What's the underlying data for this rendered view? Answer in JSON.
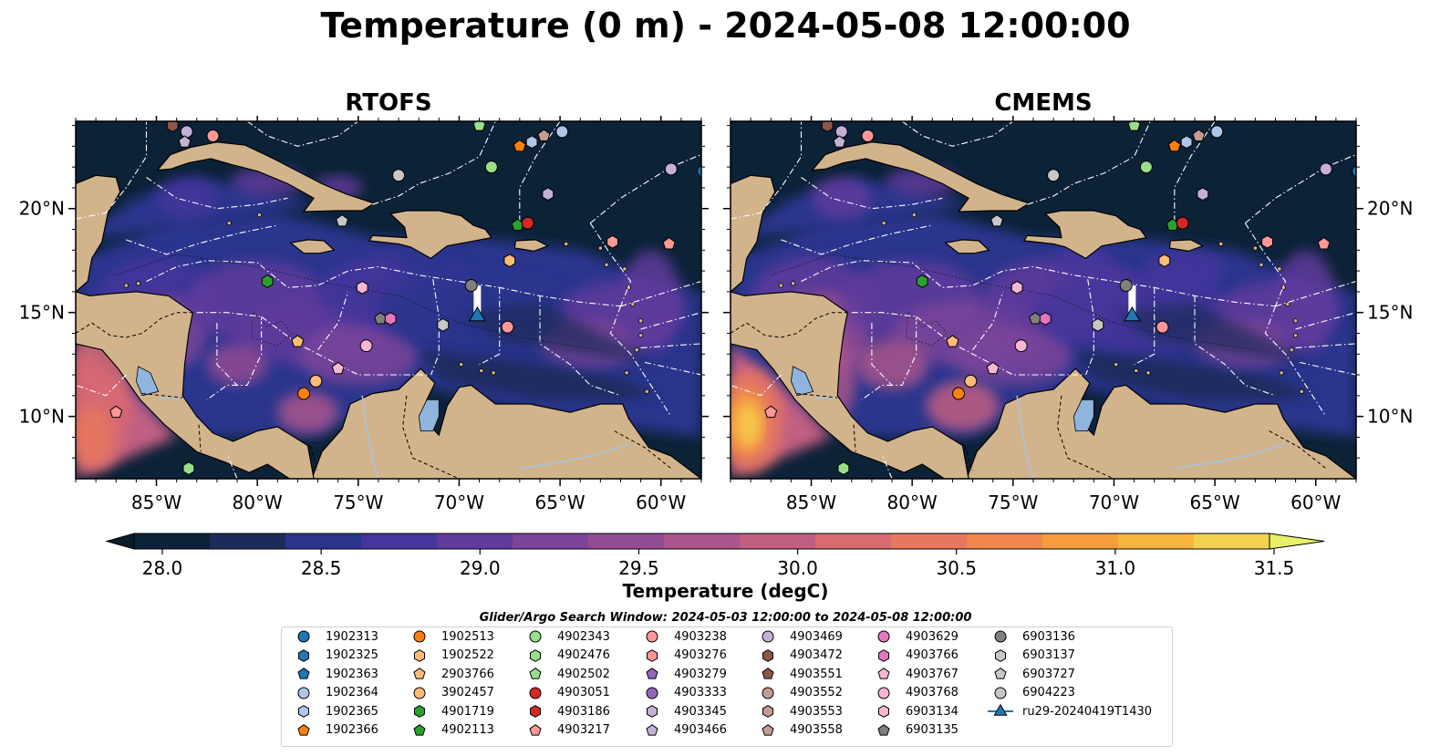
{
  "suptitle": "Temperature (0 m) - 2024-05-08 12:00:00",
  "panels": [
    {
      "title": "RTOFS"
    },
    {
      "title": "CMEMS"
    }
  ],
  "colorbar": {
    "label": "Temperature (degC)",
    "ticks": [
      "28.0",
      "28.5",
      "29.0",
      "29.5",
      "30.0",
      "30.5",
      "31.0",
      "31.5"
    ],
    "bands": [
      "#0b2237",
      "#1b2c5a",
      "#2a348d",
      "#44369c",
      "#603b9c",
      "#7a449a",
      "#934c94",
      "#aa558b",
      "#c25e82",
      "#d96a70",
      "#e8775f",
      "#f2874c",
      "#f79d3d",
      "#f8b53c",
      "#f5d24e"
    ],
    "under_color": "#0a1c2c",
    "over_color": "#e8f06a"
  },
  "chart_data": {
    "type": "map",
    "variable": "Temperature (0 m)",
    "units": "degC",
    "color_range": [
      28.0,
      31.5
    ],
    "extent": {
      "lon": [
        -89,
        -58
      ],
      "lat": [
        7,
        24.2
      ]
    },
    "lon_ticks": [
      "85°W",
      "80°W",
      "75°W",
      "70°W",
      "65°W",
      "60°W"
    ],
    "lat_ticks": [
      "10°N",
      "15°N",
      "20°N"
    ],
    "floats": [
      {
        "id": "1902313",
        "lon": -57.9,
        "lat": 21.8
      },
      {
        "id": "1902366",
        "lon": -67.0,
        "lat": 23.0
      },
      {
        "id": "4903469",
        "lon": -83.5,
        "lat": 23.7
      },
      {
        "id": "4903472",
        "lon": -84.2,
        "lat": 24.0
      },
      {
        "id": "4903238",
        "lon": -82.2,
        "lat": 23.5
      },
      {
        "id": "1902364",
        "lon": -64.9,
        "lat": 23.7
      },
      {
        "id": "4903558",
        "lon": -65.8,
        "lat": 23.5
      },
      {
        "id": "1902365",
        "lon": -66.4,
        "lat": 23.2
      },
      {
        "id": "4902502",
        "lon": -69.0,
        "lat": 24.0
      },
      {
        "id": "4903466",
        "lon": -83.6,
        "lat": 23.2
      },
      {
        "id": "4903469",
        "lon": -59.5,
        "lat": 21.9
      },
      {
        "id": "4902343",
        "lon": -68.4,
        "lat": 22.0
      },
      {
        "id": "6904223",
        "lon": -73.0,
        "lat": 21.6
      },
      {
        "id": "4903345",
        "lon": -65.6,
        "lat": 20.7
      },
      {
        "id": "4902113",
        "lon": -67.1,
        "lat": 19.2
      },
      {
        "id": "4903051",
        "lon": -66.6,
        "lat": 19.3
      },
      {
        "id": "6903727",
        "lon": -75.8,
        "lat": 19.4
      },
      {
        "id": "4903217",
        "lon": -59.6,
        "lat": 18.3
      },
      {
        "id": "4903276",
        "lon": -62.4,
        "lat": 18.4
      },
      {
        "id": "1902522",
        "lon": -67.5,
        "lat": 17.5
      },
      {
        "id": "4901719",
        "lon": -79.5,
        "lat": 16.5
      },
      {
        "id": "6903136",
        "lon": -69.4,
        "lat": 16.3
      },
      {
        "id": "6903134",
        "lon": -74.8,
        "lat": 16.2
      },
      {
        "id": "6903135",
        "lon": -73.9,
        "lat": 14.7
      },
      {
        "id": "4903766",
        "lon": -73.4,
        "lat": 14.7
      },
      {
        "id": "6903137",
        "lon": -70.8,
        "lat": 14.4
      },
      {
        "id": "4903238",
        "lon": -67.6,
        "lat": 14.3
      },
      {
        "id": "4903768",
        "lon": -74.6,
        "lat": 13.4
      },
      {
        "id": "2903766",
        "lon": -78.0,
        "lat": 13.6
      },
      {
        "id": "4903767",
        "lon": -76.0,
        "lat": 12.3
      },
      {
        "id": "3902457",
        "lon": -77.1,
        "lat": 11.7
      },
      {
        "id": "1902513",
        "lon": -77.7,
        "lat": 11.1
      },
      {
        "id": "4903217",
        "lon": -87.0,
        "lat": 10.2
      },
      {
        "id": "4902476",
        "lon": -83.4,
        "lat": 7.5
      }
    ],
    "glider": {
      "id": "ru29-20240419T1430",
      "lon": -69.1,
      "lat": 14.9,
      "track_lat_end": 16.3
    }
  },
  "legend": {
    "title": "Glider/Argo Search Window: 2024-05-03 12:00:00 to 2024-05-08 12:00:00",
    "items": [
      {
        "label": "1902313",
        "marker": "circle",
        "color": "#1f77b4"
      },
      {
        "label": "1902325",
        "marker": "hexagon",
        "color": "#1f77b4"
      },
      {
        "label": "1902363",
        "marker": "pentagon",
        "color": "#1f77b4"
      },
      {
        "label": "1902364",
        "marker": "circle",
        "color": "#aec7e8"
      },
      {
        "label": "1902365",
        "marker": "hexagon",
        "color": "#aec7e8"
      },
      {
        "label": "1902366",
        "marker": "pentagon",
        "color": "#ff7f0e"
      },
      {
        "label": "1902513",
        "marker": "circle",
        "color": "#ff7f0e"
      },
      {
        "label": "1902522",
        "marker": "hexagon",
        "color": "#ffbb78"
      },
      {
        "label": "2903766",
        "marker": "pentagon",
        "color": "#ffbb78"
      },
      {
        "label": "3902457",
        "marker": "circle",
        "color": "#ffbb78"
      },
      {
        "label": "4901719",
        "marker": "hexagon",
        "color": "#2ca02c"
      },
      {
        "label": "4902113",
        "marker": "pentagon",
        "color": "#2ca02c"
      },
      {
        "label": "4902343",
        "marker": "circle",
        "color": "#98df8a"
      },
      {
        "label": "4902476",
        "marker": "hexagon",
        "color": "#98df8a"
      },
      {
        "label": "4902502",
        "marker": "pentagon",
        "color": "#98df8a"
      },
      {
        "label": "4903051",
        "marker": "circle",
        "color": "#d62728"
      },
      {
        "label": "4903186",
        "marker": "hexagon",
        "color": "#d62728"
      },
      {
        "label": "4903217",
        "marker": "pentagon",
        "color": "#ff9896"
      },
      {
        "label": "4903238",
        "marker": "circle",
        "color": "#ff9896"
      },
      {
        "label": "4903276",
        "marker": "hexagon",
        "color": "#ff9896"
      },
      {
        "label": "4903279",
        "marker": "pentagon",
        "color": "#9467bd"
      },
      {
        "label": "4903333",
        "marker": "circle",
        "color": "#9467bd"
      },
      {
        "label": "4903345",
        "marker": "hexagon",
        "color": "#c5b0d5"
      },
      {
        "label": "4903466",
        "marker": "pentagon",
        "color": "#c5b0d5"
      },
      {
        "label": "4903469",
        "marker": "circle",
        "color": "#c5b0d5"
      },
      {
        "label": "4903472",
        "marker": "hexagon",
        "color": "#8c564b"
      },
      {
        "label": "4903551",
        "marker": "pentagon",
        "color": "#8c564b"
      },
      {
        "label": "4903552",
        "marker": "circle",
        "color": "#c49c94"
      },
      {
        "label": "4903553",
        "marker": "hexagon",
        "color": "#c49c94"
      },
      {
        "label": "4903558",
        "marker": "pentagon",
        "color": "#c49c94"
      },
      {
        "label": "4903629",
        "marker": "circle",
        "color": "#e377c2"
      },
      {
        "label": "4903766",
        "marker": "hexagon",
        "color": "#e377c2"
      },
      {
        "label": "4903767",
        "marker": "pentagon",
        "color": "#f7b6d2"
      },
      {
        "label": "4903768",
        "marker": "circle",
        "color": "#f7b6d2"
      },
      {
        "label": "6903134",
        "marker": "hexagon",
        "color": "#f7b6d2"
      },
      {
        "label": "6903135",
        "marker": "pentagon",
        "color": "#7f7f7f"
      },
      {
        "label": "6903136",
        "marker": "circle",
        "color": "#7f7f7f"
      },
      {
        "label": "6903137",
        "marker": "hexagon",
        "color": "#c7c7c7"
      },
      {
        "label": "6903727",
        "marker": "pentagon",
        "color": "#c7c7c7"
      },
      {
        "label": "6904223",
        "marker": "circle",
        "color": "#c7c7c7"
      },
      {
        "label": "ru29-20240419T1430",
        "marker": "triangle-line",
        "color": "#1f77b4"
      }
    ]
  },
  "colors": {
    "land": "#d2b48c",
    "ocean_deep": "#0b2237",
    "lake": "#8fb4de",
    "boundary": "#ffffff",
    "coast": "#000000"
  }
}
